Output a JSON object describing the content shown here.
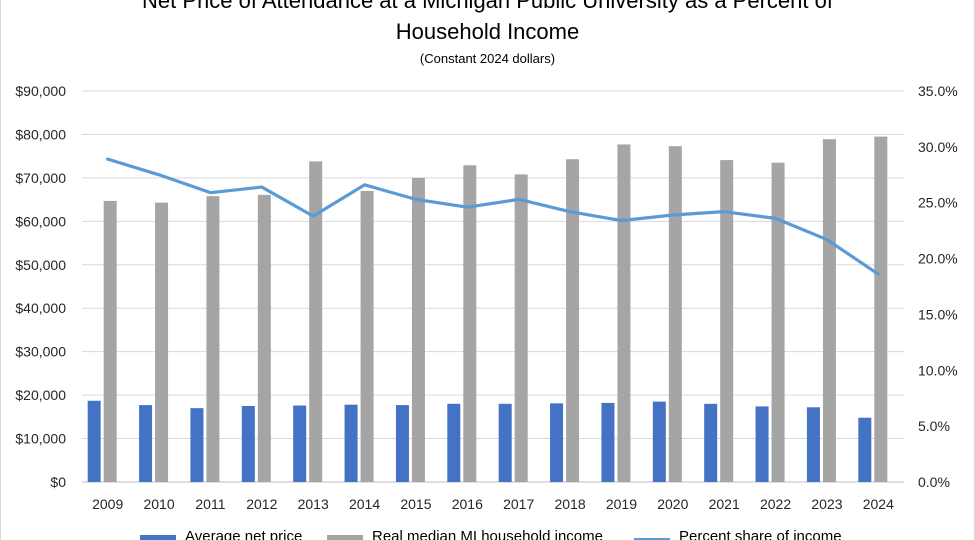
{
  "chart_data": {
    "type": "bar",
    "title_lines": [
      "Net Price of Attendance at a Michigan Public University as a Percent of",
      "Household Income"
    ],
    "subtitle": "(Constant 2024 dollars)",
    "categories": [
      "2009",
      "2010",
      "2011",
      "2012",
      "2013",
      "2014",
      "2015",
      "2016",
      "2017",
      "2018",
      "2019",
      "2020",
      "2021",
      "2022",
      "2023",
      "2024"
    ],
    "series": [
      {
        "name": "Average net price",
        "kind": "bar",
        "axis": "left",
        "color": "#4472c4",
        "values": [
          18700,
          17700,
          17000,
          17500,
          17600,
          17800,
          17700,
          18000,
          18000,
          18100,
          18200,
          18500,
          18000,
          17400,
          17200,
          14800
        ]
      },
      {
        "name": "Real median MI household income",
        "kind": "bar",
        "axis": "left",
        "color": "#a5a5a5",
        "values": [
          64700,
          64300,
          65800,
          66100,
          73800,
          67000,
          70000,
          72900,
          70800,
          74300,
          77700,
          77300,
          74100,
          73500,
          78900,
          79500
        ]
      },
      {
        "name": "Percent share of income",
        "kind": "line",
        "axis": "right",
        "color": "#5b9bd5",
        "values": [
          28.9,
          27.5,
          25.9,
          26.4,
          23.8,
          26.6,
          25.3,
          24.6,
          25.3,
          24.2,
          23.4,
          23.9,
          24.2,
          23.6,
          21.7,
          18.6
        ]
      }
    ],
    "y_left": {
      "ylim": [
        0,
        90000
      ],
      "ticks": [
        "$0",
        "$10,000",
        "$20,000",
        "$30,000",
        "$40,000",
        "$50,000",
        "$60,000",
        "$70,000",
        "$80,000",
        "$90,000"
      ]
    },
    "y_right": {
      "ylim": [
        0,
        35
      ],
      "ticks": [
        "0.0%",
        "5.0%",
        "10.0%",
        "15.0%",
        "20.0%",
        "25.0%",
        "30.0%",
        "35.0%"
      ]
    },
    "grid": true,
    "legend_position": "bottom"
  }
}
